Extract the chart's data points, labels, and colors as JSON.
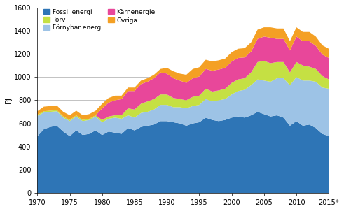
{
  "title": "",
  "ylabel": "PJ",
  "years": [
    1970,
    1971,
    1972,
    1973,
    1974,
    1975,
    1976,
    1977,
    1978,
    1979,
    1980,
    1981,
    1982,
    1983,
    1984,
    1985,
    1986,
    1987,
    1988,
    1989,
    1990,
    1991,
    1992,
    1993,
    1994,
    1995,
    1996,
    1997,
    1998,
    1999,
    2000,
    2001,
    2002,
    2003,
    2004,
    2005,
    2006,
    2007,
    2008,
    2009,
    2010,
    2011,
    2012,
    2013,
    2014,
    2015
  ],
  "fossil": [
    490,
    550,
    570,
    580,
    530,
    490,
    540,
    500,
    510,
    540,
    500,
    530,
    520,
    510,
    560,
    540,
    570,
    580,
    590,
    620,
    620,
    610,
    600,
    580,
    600,
    610,
    650,
    630,
    620,
    630,
    650,
    660,
    650,
    670,
    700,
    680,
    660,
    670,
    650,
    580,
    620,
    580,
    590,
    560,
    510,
    490
  ],
  "fornybar": [
    175,
    145,
    130,
    125,
    120,
    130,
    120,
    120,
    120,
    120,
    110,
    110,
    130,
    130,
    110,
    110,
    120,
    120,
    130,
    140,
    140,
    130,
    140,
    150,
    150,
    150,
    160,
    160,
    180,
    180,
    200,
    220,
    240,
    260,
    280,
    290,
    300,
    320,
    340,
    350,
    380,
    390,
    380,
    400,
    400,
    410
  ],
  "torv": [
    10,
    10,
    10,
    10,
    10,
    10,
    10,
    10,
    10,
    10,
    20,
    20,
    20,
    30,
    60,
    70,
    80,
    90,
    90,
    90,
    90,
    80,
    70,
    70,
    80,
    80,
    90,
    85,
    85,
    90,
    100,
    100,
    100,
    110,
    150,
    170,
    160,
    140,
    140,
    110,
    130,
    130,
    120,
    110,
    100,
    80
  ],
  "karnenergi": [
    0,
    0,
    0,
    0,
    0,
    0,
    0,
    0,
    0,
    0,
    100,
    120,
    130,
    140,
    150,
    160,
    170,
    170,
    180,
    190,
    180,
    170,
    160,
    150,
    160,
    165,
    170,
    180,
    180,
    180,
    185,
    185,
    180,
    180,
    200,
    210,
    220,
    200,
    200,
    190,
    220,
    210,
    220,
    200,
    185,
    185
  ],
  "ovriga": [
    30,
    40,
    40,
    40,
    40,
    40,
    40,
    40,
    40,
    40,
    40,
    40,
    40,
    30,
    30,
    30,
    30,
    30,
    30,
    30,
    50,
    60,
    60,
    70,
    80,
    80,
    80,
    80,
    80,
    80,
    80,
    80,
    80,
    80,
    80,
    80,
    90,
    90,
    90,
    80,
    80,
    80,
    80,
    80,
    80,
    80
  ],
  "colors": {
    "fossil": "#2E75B6",
    "fornybar": "#9DC3E6",
    "torv": "#C5E043",
    "karnenergi": "#E8479A",
    "ovriga": "#F4A024"
  },
  "ylim": [
    0,
    1600
  ],
  "yticks": [
    0,
    200,
    400,
    600,
    800,
    1000,
    1200,
    1400,
    1600
  ],
  "xtick_labels": [
    "1970",
    "1975",
    "1980",
    "1985",
    "1990",
    "1995",
    "2000",
    "2005",
    "2010",
    "2015*"
  ],
  "xtick_positions": [
    1970,
    1975,
    1980,
    1985,
    1990,
    1995,
    2000,
    2005,
    2010,
    2015
  ],
  "legend_row1": [
    {
      "label": "Fossil energi",
      "color": "#2E75B6"
    },
    {
      "label": "Torv",
      "color": "#C5E043"
    }
  ],
  "legend_row2": [
    {
      "label": "Förnybar energi",
      "color": "#9DC3E6"
    },
    {
      "label": "Kärnenergie",
      "color": "#E8479A"
    }
  ],
  "legend_row3": [
    {
      "label": "Övriga",
      "color": "#F4A024"
    }
  ],
  "background_color": "#FFFFFF",
  "grid_color": "#AAAAAA"
}
